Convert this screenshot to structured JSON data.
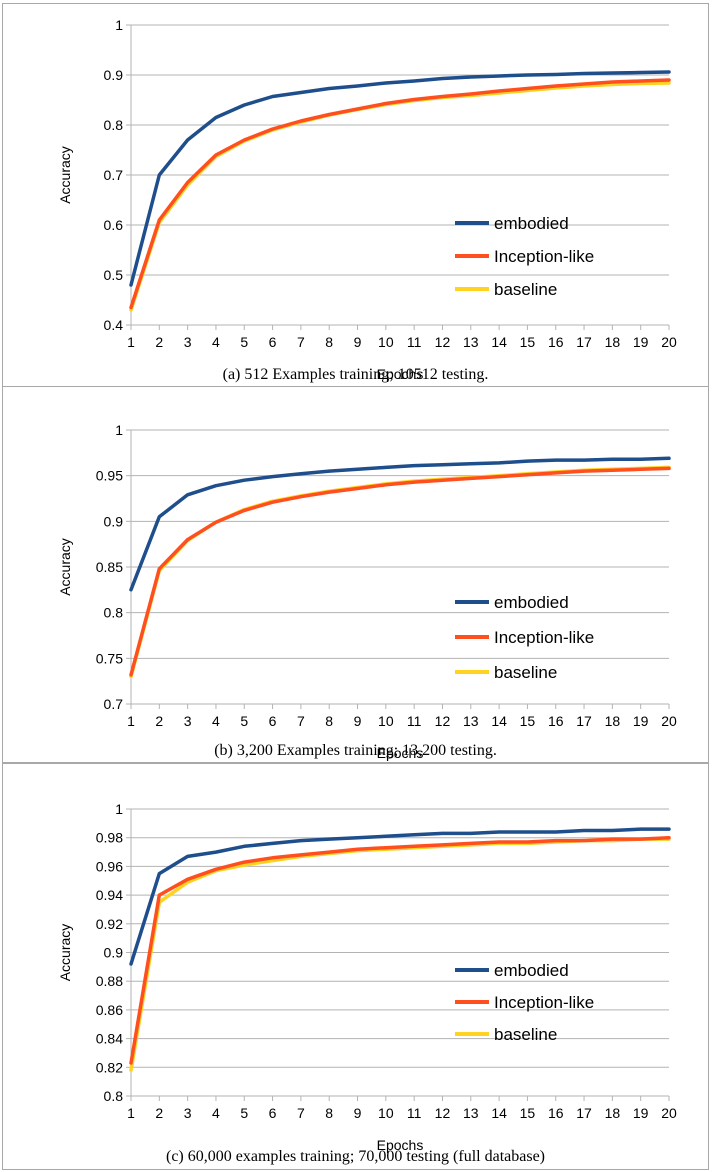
{
  "chart_data": [
    {
      "type": "line",
      "caption": "(a) 512 Examples training; 10512 testing.",
      "xlabel": "Epochs",
      "ylabel": "Accuracy",
      "xlim": [
        1,
        20
      ],
      "ylim": [
        0.4,
        1
      ],
      "yticks": [
        0.4,
        0.5,
        0.6,
        0.7,
        0.8,
        0.9,
        1
      ],
      "ytick_labels": [
        "0.4",
        "0.5",
        "0.6",
        "0.7",
        "0.8",
        "0.9",
        "1"
      ],
      "x": [
        1,
        2,
        3,
        4,
        5,
        6,
        7,
        8,
        9,
        10,
        11,
        12,
        13,
        14,
        15,
        16,
        17,
        18,
        19,
        20
      ],
      "xtick_labels": [
        "1",
        "2",
        "3",
        "4",
        "5",
        "6",
        "7",
        "8",
        "9",
        "10",
        "11",
        "12",
        "13",
        "14",
        "15",
        "16",
        "17",
        "18",
        "19",
        "20"
      ],
      "grid": true,
      "legend": "center-right",
      "series": [
        {
          "name": "embodied",
          "color": "#1f4e8c",
          "values": [
            0.48,
            0.7,
            0.77,
            0.815,
            0.84,
            0.857,
            0.865,
            0.873,
            0.878,
            0.884,
            0.888,
            0.893,
            0.896,
            0.898,
            0.9,
            0.901,
            0.903,
            0.904,
            0.905,
            0.906
          ]
        },
        {
          "name": "Inception-like",
          "color": "#ff4f1f",
          "values": [
            0.435,
            0.61,
            0.685,
            0.74,
            0.77,
            0.792,
            0.808,
            0.821,
            0.832,
            0.843,
            0.851,
            0.857,
            0.862,
            0.868,
            0.873,
            0.878,
            0.882,
            0.886,
            0.888,
            0.89
          ]
        },
        {
          "name": "baseline",
          "color": "#ffd320",
          "values": [
            0.43,
            0.605,
            0.68,
            0.737,
            0.768,
            0.79,
            0.806,
            0.82,
            0.831,
            0.841,
            0.849,
            0.855,
            0.859,
            0.864,
            0.869,
            0.874,
            0.878,
            0.881,
            0.883,
            0.884
          ]
        }
      ]
    },
    {
      "type": "line",
      "caption": "(b) 3,200 Examples training; 13,200 testing.",
      "xlabel": "Epochs",
      "ylabel": "Accuracy",
      "xlim": [
        1,
        20
      ],
      "ylim": [
        0.7,
        1
      ],
      "yticks": [
        0.7,
        0.75,
        0.8,
        0.85,
        0.9,
        0.95,
        1
      ],
      "ytick_labels": [
        "0.7",
        "0.75",
        "0.8",
        "0.85",
        "0.9",
        "0.95",
        "1"
      ],
      "x": [
        1,
        2,
        3,
        4,
        5,
        6,
        7,
        8,
        9,
        10,
        11,
        12,
        13,
        14,
        15,
        16,
        17,
        18,
        19,
        20
      ],
      "xtick_labels": [
        "1",
        "2",
        "3",
        "4",
        "5",
        "6",
        "7",
        "8",
        "9",
        "10",
        "11",
        "12",
        "13",
        "14",
        "15",
        "16",
        "17",
        "18",
        "19",
        "20"
      ],
      "grid": true,
      "legend": "center-right",
      "series": [
        {
          "name": "embodied",
          "color": "#1f4e8c",
          "values": [
            0.825,
            0.905,
            0.929,
            0.939,
            0.945,
            0.949,
            0.952,
            0.955,
            0.957,
            0.959,
            0.961,
            0.962,
            0.963,
            0.964,
            0.966,
            0.967,
            0.967,
            0.968,
            0.968,
            0.969
          ]
        },
        {
          "name": "Inception-like",
          "color": "#ff4f1f",
          "values": [
            0.732,
            0.848,
            0.88,
            0.899,
            0.912,
            0.921,
            0.927,
            0.932,
            0.936,
            0.94,
            0.943,
            0.945,
            0.947,
            0.949,
            0.951,
            0.953,
            0.955,
            0.956,
            0.957,
            0.958
          ]
        },
        {
          "name": "baseline",
          "color": "#ffd320",
          "values": [
            0.73,
            0.846,
            0.879,
            0.899,
            0.913,
            0.922,
            0.928,
            0.933,
            0.937,
            0.941,
            0.944,
            0.946,
            0.948,
            0.95,
            0.952,
            0.954,
            0.956,
            0.957,
            0.958,
            0.959
          ]
        }
      ]
    },
    {
      "type": "line",
      "caption": "(c) 60,000 examples training; 70,000 testing (full database)",
      "xlabel": "Epochs",
      "ylabel": "Accuracy",
      "xlim": [
        1,
        20
      ],
      "ylim": [
        0.8,
        1
      ],
      "yticks": [
        0.8,
        0.82,
        0.84,
        0.86,
        0.88,
        0.9,
        0.92,
        0.94,
        0.96,
        0.98,
        1
      ],
      "ytick_labels": [
        "0.8",
        "0.82",
        "0.84",
        "0.86",
        "0.88",
        "0.9",
        "0.92",
        "0.94",
        "0.96",
        "0.98",
        "1"
      ],
      "x": [
        1,
        2,
        3,
        4,
        5,
        6,
        7,
        8,
        9,
        10,
        11,
        12,
        13,
        14,
        15,
        16,
        17,
        18,
        19,
        20
      ],
      "xtick_labels": [
        "1",
        "2",
        "3",
        "4",
        "5",
        "6",
        "7",
        "8",
        "9",
        "10",
        "11",
        "12",
        "13",
        "14",
        "15",
        "16",
        "17",
        "18",
        "19",
        "20"
      ],
      "grid": true,
      "legend": "center-right",
      "series": [
        {
          "name": "embodied",
          "color": "#1f4e8c",
          "values": [
            0.892,
            0.955,
            0.967,
            0.97,
            0.974,
            0.976,
            0.978,
            0.979,
            0.98,
            0.981,
            0.982,
            0.983,
            0.983,
            0.984,
            0.984,
            0.984,
            0.985,
            0.985,
            0.986,
            0.986
          ]
        },
        {
          "name": "Inception-like",
          "color": "#ff4f1f",
          "values": [
            0.823,
            0.94,
            0.951,
            0.958,
            0.963,
            0.966,
            0.968,
            0.97,
            0.972,
            0.973,
            0.974,
            0.975,
            0.976,
            0.977,
            0.977,
            0.978,
            0.978,
            0.979,
            0.979,
            0.98
          ]
        },
        {
          "name": "baseline",
          "color": "#ffd320",
          "values": [
            0.818,
            0.935,
            0.949,
            0.957,
            0.961,
            0.964,
            0.967,
            0.969,
            0.971,
            0.972,
            0.973,
            0.974,
            0.975,
            0.976,
            0.976,
            0.977,
            0.978,
            0.978,
            0.979,
            0.979
          ]
        }
      ]
    }
  ]
}
